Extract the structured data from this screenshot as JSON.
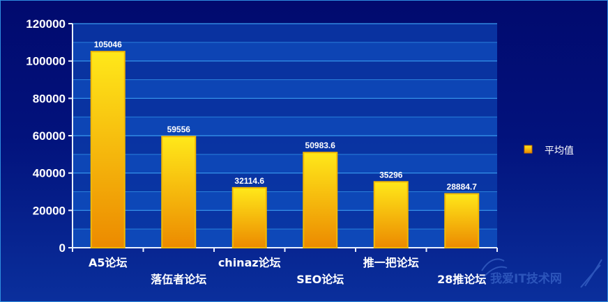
{
  "chart_data": {
    "type": "bar",
    "categories": [
      "A5论坛",
      "落伍者论坛",
      "chinaz论坛",
      "SEO论坛",
      "推一把论坛",
      "28推论坛"
    ],
    "series": [
      {
        "name": "平均值",
        "values": [
          105046,
          59556,
          32114.6,
          50983.6,
          35296,
          28884.7
        ]
      }
    ],
    "data_labels": [
      "105046",
      "59556",
      "32114.6",
      "50983.6",
      "35296",
      "28884.7"
    ],
    "ylim": [
      0,
      120000
    ],
    "yticks": [
      "0",
      "20000",
      "40000",
      "60000",
      "80000",
      "100000",
      "120000"
    ],
    "grid": true,
    "legend_position": "right",
    "colors": {
      "bar_top": "#ffe81a",
      "bar_bottom": "#ec8a00",
      "bar_edge": "#f2b800",
      "axis": "#e8f0ff"
    }
  },
  "watermark": {
    "text": "我爱IT技术网"
  }
}
